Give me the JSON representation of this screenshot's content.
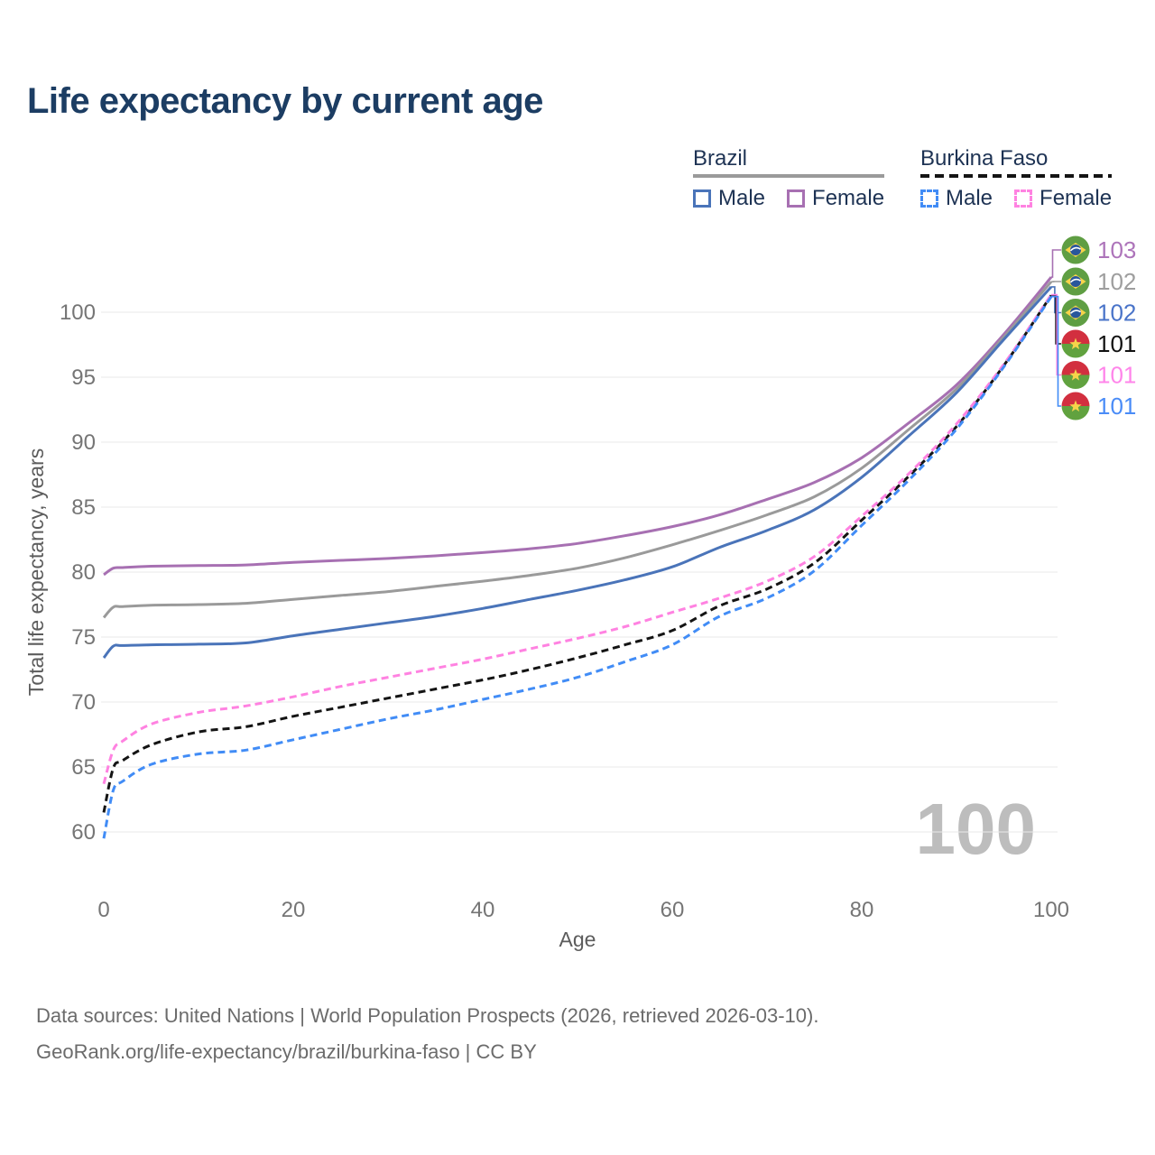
{
  "title": "Life expectancy by current age",
  "watermark": "100",
  "legend": {
    "groups": [
      {
        "country": "Brazil",
        "underline_style": "solid",
        "underline_color": "#9a9a9a",
        "items": [
          {
            "label": "Male",
            "color": "#4a74b9",
            "dashed": false
          },
          {
            "label": "Female",
            "color": "#a770b2",
            "dashed": false
          }
        ]
      },
      {
        "country": "Burkina Faso",
        "underline_style": "dashed",
        "underline_color": "#141414",
        "items": [
          {
            "label": "Male",
            "color": "#418cf6",
            "dashed": true
          },
          {
            "label": "Female",
            "color": "#ff82e1",
            "dashed": true
          }
        ]
      }
    ]
  },
  "chart_data": {
    "type": "line",
    "title": "Life expectancy by current age",
    "xlabel": "Age",
    "ylabel": "Total life expectancy, years",
    "xlim": [
      0,
      100
    ],
    "ylim": [
      57.5,
      103.5
    ],
    "xticks": [
      0,
      20,
      40,
      60,
      80,
      100
    ],
    "yticks": [
      60,
      65,
      70,
      75,
      80,
      85,
      90,
      95,
      100
    ],
    "grid": true,
    "legend_position": "top-right",
    "x": [
      0,
      1,
      2,
      5,
      10,
      15,
      20,
      25,
      30,
      35,
      40,
      45,
      50,
      55,
      60,
      65,
      70,
      75,
      80,
      85,
      90,
      95,
      100
    ],
    "series": [
      {
        "name": "Brazil Female",
        "country": "Brazil",
        "sex": "Female",
        "color": "#a770b2",
        "dashed": false,
        "flag": "brazil",
        "end_label": "103",
        "end_label_color": "#ad74ba",
        "values": [
          79.8,
          80.3,
          80.35,
          80.45,
          80.5,
          80.55,
          80.75,
          80.9,
          81.05,
          81.25,
          81.5,
          81.8,
          82.2,
          82.8,
          83.5,
          84.4,
          85.6,
          86.9,
          88.8,
          91.5,
          94.4,
          98.3,
          102.7
        ]
      },
      {
        "name": "Brazil All",
        "country": "Brazil",
        "sex": "Both",
        "color": "#9a9a9a",
        "dashed": false,
        "flag": "brazil",
        "end_label": "102",
        "end_label_color": "#9e9e9e",
        "values": [
          76.5,
          77.3,
          77.35,
          77.45,
          77.5,
          77.6,
          77.9,
          78.2,
          78.5,
          78.9,
          79.3,
          79.75,
          80.3,
          81.1,
          82.1,
          83.2,
          84.4,
          85.8,
          88.0,
          91.0,
          94.1,
          98.1,
          102.35
        ]
      },
      {
        "name": "Brazil Male",
        "country": "Brazil",
        "sex": "Male",
        "color": "#4a74b9",
        "dashed": false,
        "flag": "brazil",
        "end_label": "102",
        "end_label_color": "#4a74c9",
        "values": [
          73.4,
          74.3,
          74.35,
          74.4,
          74.45,
          74.55,
          75.1,
          75.6,
          76.1,
          76.6,
          77.2,
          77.9,
          78.6,
          79.4,
          80.4,
          81.9,
          83.2,
          84.8,
          87.3,
          90.5,
          93.8,
          97.9,
          101.95
        ]
      },
      {
        "name": "Burkina Faso All",
        "country": "Burkina Faso",
        "sex": "Both",
        "color": "#141414",
        "dashed": true,
        "flag": "burkina-faso",
        "end_label": "101",
        "end_label_color": "#111111",
        "values": [
          61.5,
          64.9,
          65.5,
          66.7,
          67.7,
          68.1,
          68.9,
          69.6,
          70.3,
          71.0,
          71.7,
          72.5,
          73.4,
          74.4,
          75.5,
          77.4,
          78.7,
          80.7,
          84.0,
          87.4,
          91.2,
          95.9,
          101.3
        ]
      },
      {
        "name": "Burkina Faso Female",
        "country": "Burkina Faso",
        "sex": "Female",
        "color": "#ff82e1",
        "dashed": true,
        "flag": "burkina-faso",
        "end_label": "101",
        "end_label_color": "#ff85ea",
        "values": [
          63.7,
          66.3,
          67.0,
          68.3,
          69.2,
          69.7,
          70.4,
          71.2,
          71.9,
          72.6,
          73.3,
          74.1,
          74.9,
          75.8,
          76.9,
          78.0,
          79.3,
          81.2,
          84.3,
          87.6,
          91.4,
          96.0,
          101.35
        ]
      },
      {
        "name": "Burkina Faso Male",
        "country": "Burkina Faso",
        "sex": "Male",
        "color": "#418cf6",
        "dashed": true,
        "flag": "burkina-faso",
        "end_label": "101",
        "end_label_color": "#4a8cf7",
        "values": [
          59.5,
          63.2,
          63.9,
          65.2,
          66.0,
          66.3,
          67.1,
          67.9,
          68.7,
          69.4,
          70.2,
          71.0,
          71.9,
          73.1,
          74.4,
          76.6,
          78.0,
          80.1,
          83.6,
          87.1,
          91.0,
          95.8,
          101.2
        ]
      }
    ],
    "flag_colors": {
      "brazil": {
        "circle": "#5f9e43",
        "diamond": "#f7d44a",
        "globe": "#29579c",
        "band": "#ffffff"
      },
      "burkina-faso": {
        "top": "#d22f3f",
        "bottom": "#61a23f",
        "star": "#f7d44a"
      }
    },
    "style": {
      "grid_color": "#e9e9e9",
      "tick_color": "#757575",
      "axis_title_color": "#5c5c5c",
      "watermark_color": "#bdbdbd"
    }
  },
  "footer": {
    "line1": "Data sources: United Nations | World Population Prospects (2026, retrieved 2026-03-10).",
    "line2": "GeoRank.org/life-expectancy/brazil/burkina-faso | CC BY"
  }
}
